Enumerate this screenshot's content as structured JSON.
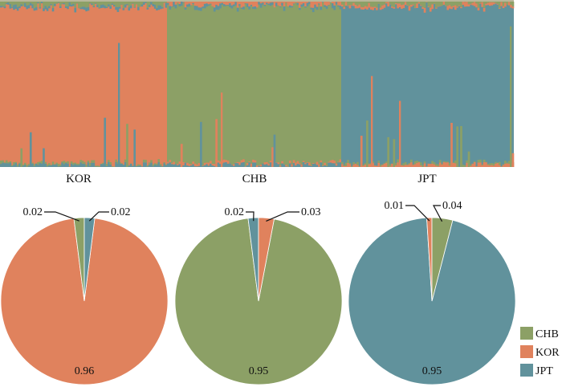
{
  "colors": {
    "CHB": "#8ca066",
    "KOR": "#e0825d",
    "JPT": "#61929c"
  },
  "legend": {
    "items": [
      {
        "label": "CHB",
        "color": "#8ca066"
      },
      {
        "label": "KOR",
        "color": "#e0825d"
      },
      {
        "label": "JPT",
        "color": "#61929c"
      }
    ]
  },
  "chart_data": [
    {
      "type": "bar",
      "stacked": true,
      "description_components": [
        "KOR",
        "CHB",
        "JPT"
      ],
      "groups": [
        {
          "name": "KOR",
          "dominant": "KOR",
          "others": [
            "CHB",
            "JPT"
          ],
          "n": 90
        },
        {
          "name": "CHB",
          "dominant": "CHB",
          "others": [
            "KOR",
            "JPT"
          ],
          "n": 90
        },
        {
          "name": "JPT",
          "dominant": "JPT",
          "others": [
            "CHB",
            "KOR"
          ],
          "n": 90
        }
      ],
      "ylim": [
        0,
        1
      ]
    },
    {
      "type": "pie",
      "group": "KOR",
      "slices": [
        {
          "name": "KOR",
          "value": 0.96,
          "label": "0.96"
        },
        {
          "name": "CHB",
          "value": 0.02,
          "label": "0.02"
        },
        {
          "name": "JPT",
          "value": 0.02,
          "label": "0.02"
        }
      ]
    },
    {
      "type": "pie",
      "group": "CHB",
      "slices": [
        {
          "name": "CHB",
          "value": 0.95,
          "label": "0.95"
        },
        {
          "name": "JPT",
          "value": 0.02,
          "label": "0.02"
        },
        {
          "name": "KOR",
          "value": 0.03,
          "label": "0.03"
        }
      ]
    },
    {
      "type": "pie",
      "group": "JPT",
      "slices": [
        {
          "name": "JPT",
          "value": 0.95,
          "label": "0.95"
        },
        {
          "name": "KOR",
          "value": 0.01,
          "label": "0.01"
        },
        {
          "name": "CHB",
          "value": 0.04,
          "label": "0.04"
        }
      ]
    }
  ]
}
